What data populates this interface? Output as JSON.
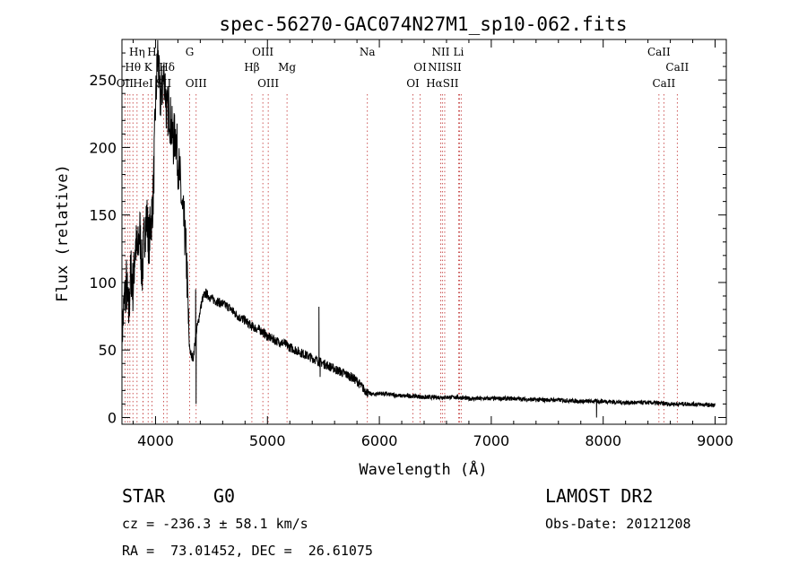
{
  "chart_data": {
    "type": "line",
    "title": "spec-56270-GAC074N27M1_sp10-062.fits",
    "xlabel": "Wavelength (Å)",
    "ylabel": "Flux (relative)",
    "xlim": [
      3700,
      9100
    ],
    "ylim": [
      -5,
      280
    ],
    "x_ticks": [
      4000,
      5000,
      6000,
      7000,
      8000,
      9000
    ],
    "y_ticks": [
      0,
      50,
      100,
      150,
      200,
      250
    ],
    "grid": false,
    "spectrum": {
      "anchors": [
        [
          3700,
          60
        ],
        [
          3720,
          85
        ],
        [
          3740,
          100
        ],
        [
          3760,
          75
        ],
        [
          3780,
          110
        ],
        [
          3800,
          95
        ],
        [
          3820,
          130
        ],
        [
          3840,
          120
        ],
        [
          3860,
          140
        ],
        [
          3880,
          105
        ],
        [
          3900,
          135
        ],
        [
          3920,
          150
        ],
        [
          3940,
          130
        ],
        [
          3960,
          145
        ],
        [
          3980,
          165
        ],
        [
          4000,
          230
        ],
        [
          4020,
          270
        ],
        [
          4040,
          235
        ],
        [
          4060,
          245
        ],
        [
          4080,
          255
        ],
        [
          4100,
          225
        ],
        [
          4120,
          230
        ],
        [
          4140,
          215
        ],
        [
          4160,
          205
        ],
        [
          4180,
          210
        ],
        [
          4200,
          190
        ],
        [
          4220,
          175
        ],
        [
          4240,
          150
        ],
        [
          4260,
          140
        ],
        [
          4280,
          110
        ],
        [
          4300,
          55
        ],
        [
          4320,
          45
        ],
        [
          4340,
          45
        ],
        [
          4360,
          62
        ],
        [
          4380,
          70
        ],
        [
          4400,
          80
        ],
        [
          4420,
          88
        ],
        [
          4450,
          92
        ],
        [
          4500,
          88
        ],
        [
          4550,
          86
        ],
        [
          4600,
          84
        ],
        [
          4650,
          82
        ],
        [
          4700,
          78
        ],
        [
          4750,
          74
        ],
        [
          4800,
          72
        ],
        [
          4850,
          68
        ],
        [
          4900,
          66
        ],
        [
          4950,
          64
        ],
        [
          5000,
          60
        ],
        [
          5050,
          58
        ],
        [
          5100,
          56
        ],
        [
          5150,
          55
        ],
        [
          5200,
          52
        ],
        [
          5250,
          50
        ],
        [
          5300,
          48
        ],
        [
          5350,
          46
        ],
        [
          5400,
          44
        ],
        [
          5450,
          42
        ],
        [
          5500,
          40
        ],
        [
          5550,
          38
        ],
        [
          5600,
          36
        ],
        [
          5650,
          34
        ],
        [
          5700,
          32
        ],
        [
          5750,
          30
        ],
        [
          5800,
          27
        ],
        [
          5850,
          22
        ],
        [
          5900,
          18
        ],
        [
          5950,
          17
        ],
        [
          6000,
          18
        ],
        [
          6100,
          17
        ],
        [
          6200,
          16
        ],
        [
          6300,
          16
        ],
        [
          6400,
          15
        ],
        [
          6500,
          15
        ],
        [
          6600,
          15
        ],
        [
          6700,
          15
        ],
        [
          6800,
          14
        ],
        [
          7000,
          14
        ],
        [
          7200,
          14
        ],
        [
          7400,
          13
        ],
        [
          7600,
          13
        ],
        [
          7800,
          12
        ],
        [
          8000,
          12
        ],
        [
          8200,
          11
        ],
        [
          8400,
          11
        ],
        [
          8600,
          10
        ],
        [
          8800,
          10
        ],
        [
          9000,
          9
        ]
      ],
      "spikes": [
        [
          4358,
          95
        ],
        [
          4362,
          10
        ],
        [
          5460,
          82
        ],
        [
          5470,
          30
        ],
        [
          7940,
          0
        ],
        [
          7945,
          -4
        ],
        [
          7605,
          20
        ]
      ]
    },
    "lines": [
      {
        "label": "Hη",
        "wave": 3835,
        "row": 0
      },
      {
        "label": "H",
        "wave": 3968,
        "row": 0
      },
      {
        "label": "G",
        "wave": 4305,
        "row": 0
      },
      {
        "label": "OIII",
        "wave": 4959,
        "row": 0
      },
      {
        "label": "Na",
        "wave": 5893,
        "row": 0
      },
      {
        "label": "NII",
        "wave": 6548,
        "row": 0
      },
      {
        "label": "Li",
        "wave": 6708,
        "row": 0
      },
      {
        "label": "CaII",
        "wave": 8498,
        "row": 0
      },
      {
        "label": "Hθ",
        "wave": 3798,
        "row": 1
      },
      {
        "label": "K",
        "wave": 3934,
        "row": 1
      },
      {
        "label": "Hδ",
        "wave": 4102,
        "row": 1
      },
      {
        "label": "Hβ",
        "wave": 4861,
        "row": 1
      },
      {
        "label": "Mg",
        "wave": 5175,
        "row": 1
      },
      {
        "label": "OI",
        "wave": 6364,
        "row": 1
      },
      {
        "label": "NIISII",
        "wave": 6584,
        "row": 1
      },
      {
        "label": "CaII",
        "wave": 8662,
        "row": 1
      },
      {
        "label": "OII",
        "wave": 3727,
        "row": 2
      },
      {
        "label": "HeI",
        "wave": 3889,
        "row": 2
      },
      {
        "label": "SII",
        "wave": 4072,
        "row": 2
      },
      {
        "label": "OIII",
        "wave": 4363,
        "row": 2
      },
      {
        "label": "OIII",
        "wave": 5007,
        "row": 2
      },
      {
        "label": "OI",
        "wave": 6300,
        "row": 2
      },
      {
        "label": "HαSII",
        "wave": 6563,
        "row": 2
      },
      {
        "label": "CaII",
        "wave": 8542,
        "row": 2
      }
    ],
    "extra_marker_lines": [
      3750,
      3771,
      3889,
      6716,
      6731
    ]
  },
  "info": {
    "object_class": "STAR",
    "subclass": "G0",
    "survey": "LAMOST DR2",
    "redshift": "cz = -236.3 ± 58.1 km/s",
    "obs_date": "Obs-Date: 20121208",
    "coords": "RA =  73.01452, DEC =  26.61075"
  }
}
